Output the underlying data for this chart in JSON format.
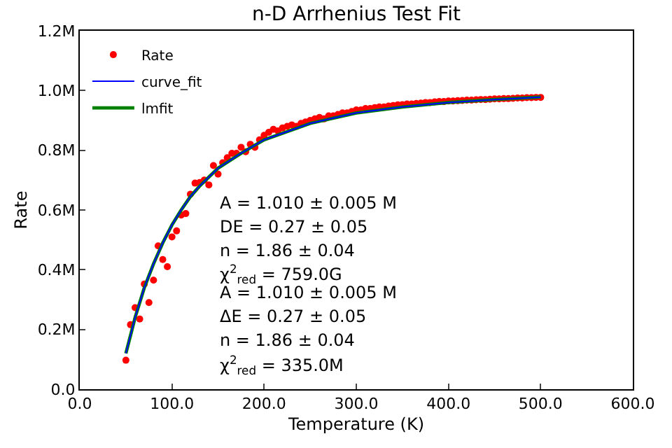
{
  "chart_data": {
    "type": "scatter",
    "title": "n-D Arrhenius Test Fit",
    "xlabel": "Temperature (K)",
    "ylabel": "Rate",
    "x": [
      50,
      55,
      60,
      65,
      70,
      75,
      80,
      85,
      90,
      95,
      100,
      105,
      110,
      115,
      120,
      125,
      130,
      135,
      140,
      145,
      150,
      155,
      160,
      165,
      170,
      175,
      180,
      185,
      190,
      195,
      200,
      205,
      210,
      215,
      220,
      225,
      230,
      235,
      240,
      245,
      250,
      255,
      260,
      265,
      270,
      275,
      280,
      285,
      290,
      295,
      300,
      305,
      310,
      315,
      320,
      325,
      330,
      335,
      340,
      345,
      350,
      355,
      360,
      365,
      370,
      375,
      380,
      385,
      390,
      395,
      400,
      405,
      410,
      415,
      420,
      425,
      430,
      435,
      440,
      445,
      450,
      455,
      460,
      465,
      470,
      475,
      480,
      485,
      490,
      495,
      500
    ],
    "series": [
      {
        "name": "Rate",
        "color": "#ff0000",
        "marker": "circle",
        "values": [
          0.097,
          0.216,
          0.273,
          0.235,
          0.352,
          0.29,
          0.365,
          0.48,
          0.434,
          0.41,
          0.51,
          0.53,
          0.583,
          0.588,
          0.653,
          0.69,
          0.692,
          0.7,
          0.684,
          0.749,
          0.72,
          0.758,
          0.775,
          0.79,
          0.79,
          0.81,
          0.795,
          0.82,
          0.81,
          0.835,
          0.85,
          0.86,
          0.87,
          0.865,
          0.875,
          0.88,
          0.885,
          0.88,
          0.89,
          0.895,
          0.9,
          0.905,
          0.91,
          0.905,
          0.915,
          0.915,
          0.92,
          0.925,
          0.925,
          0.93,
          0.935,
          0.935,
          0.94,
          0.94,
          0.943,
          0.945,
          0.945,
          0.948,
          0.95,
          0.952,
          0.953,
          0.955,
          0.955,
          0.957,
          0.958,
          0.96,
          0.96,
          0.962,
          0.963,
          0.963,
          0.965,
          0.965,
          0.966,
          0.967,
          0.968,
          0.968,
          0.969,
          0.97,
          0.97,
          0.971,
          0.972,
          0.972,
          0.973,
          0.973,
          0.974,
          0.975,
          0.975,
          0.976,
          0.976,
          0.977,
          0.977
        ]
      },
      {
        "name": "curve_fit",
        "type": "line",
        "color": "#0000ff",
        "x": [
          50,
          60,
          70,
          80,
          90,
          100,
          110,
          120,
          130,
          140,
          150,
          175,
          200,
          250,
          300,
          350,
          400,
          450,
          500
        ],
        "values": [
          0.12,
          0.24,
          0.34,
          0.42,
          0.49,
          0.55,
          0.6,
          0.645,
          0.68,
          0.71,
          0.74,
          0.79,
          0.835,
          0.89,
          0.925,
          0.945,
          0.96,
          0.97,
          0.978
        ]
      },
      {
        "name": "lmfit",
        "type": "line",
        "color": "#008000",
        "x": [
          50,
          60,
          70,
          80,
          90,
          100,
          110,
          120,
          130,
          140,
          150,
          175,
          200,
          250,
          300,
          350,
          400,
          450,
          500
        ],
        "values": [
          0.12,
          0.24,
          0.34,
          0.42,
          0.49,
          0.55,
          0.6,
          0.645,
          0.68,
          0.71,
          0.74,
          0.79,
          0.835,
          0.89,
          0.925,
          0.945,
          0.96,
          0.97,
          0.978
        ]
      }
    ],
    "xlim": [
      0,
      600
    ],
    "xticks": [
      {
        "value": 0,
        "label": "0.0"
      },
      {
        "value": 100,
        "label": "100.0"
      },
      {
        "value": 200,
        "label": "200.0"
      },
      {
        "value": 300,
        "label": "300.0"
      },
      {
        "value": 400,
        "label": "400.0"
      },
      {
        "value": 500,
        "label": "500.0"
      },
      {
        "value": 600,
        "label": "600.0"
      }
    ],
    "ylim": [
      0,
      1.2
    ],
    "yticks": [
      {
        "value": 0,
        "label": "0.0"
      },
      {
        "value": 0.2,
        "label": "0.2M"
      },
      {
        "value": 0.4,
        "label": "0.4M"
      },
      {
        "value": 0.6,
        "label": "0.6M"
      },
      {
        "value": 0.8,
        "label": "0.8M"
      },
      {
        "value": 1.0,
        "label": "1.0M"
      },
      {
        "value": 1.2,
        "label": "1.2M"
      }
    ],
    "grid": false,
    "legend": "top left",
    "line_style": "solid",
    "annotations": [
      "A = 1.010 ± 0.005 M",
      "DE = 0.27 ± 0.05",
      "n = 1.86 ± 0.04",
      "χ$^{2}$$_{red}$ = 759.0G",
      "A = 1.010 ± 0.005 M",
      "ΔE = 0.27 ± 0.05",
      "n = 1.86 ± 0.04",
      "χ$^{2}$$_{red}$ = 335.0M"
    ]
  }
}
